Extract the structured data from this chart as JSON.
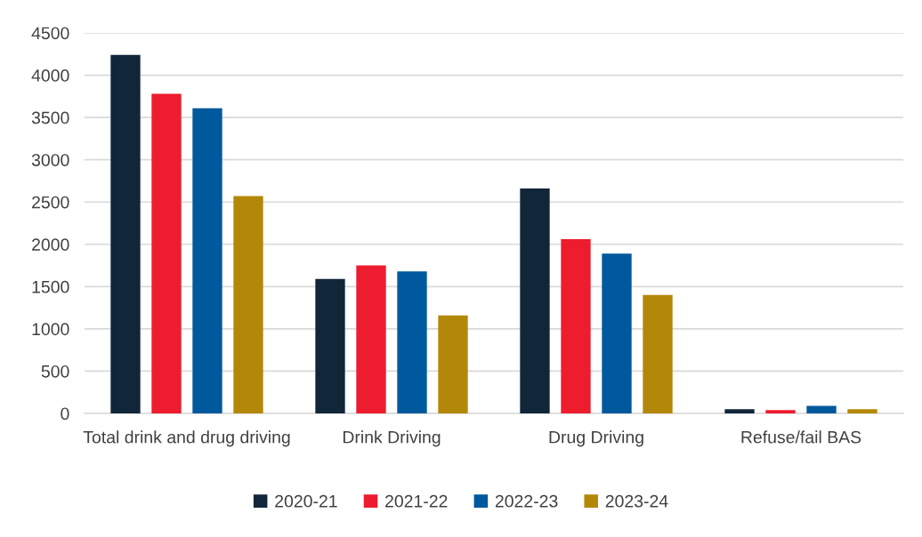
{
  "chart_data": {
    "type": "bar",
    "categories": [
      "Total drink and drug driving",
      "Drink Driving",
      "Drug Driving",
      "Refuse/fail BAS"
    ],
    "series": [
      {
        "name": "2020-21",
        "color": "#12263a",
        "values": [
          4240,
          1590,
          2660,
          50
        ]
      },
      {
        "name": "2021-22",
        "color": "#ed1c2e",
        "values": [
          3780,
          1750,
          2060,
          40
        ]
      },
      {
        "name": "2022-23",
        "color": "#00599c",
        "values": [
          3610,
          1680,
          1890,
          90
        ]
      },
      {
        "name": "2023-24",
        "color": "#b38808",
        "values": [
          2570,
          1160,
          1400,
          50
        ]
      }
    ],
    "ylim": [
      0,
      4500
    ],
    "yticks": [
      0,
      500,
      1000,
      1500,
      2000,
      2500,
      3000,
      3500,
      4000,
      4500
    ],
    "grid": "y",
    "legend": "bottom"
  }
}
